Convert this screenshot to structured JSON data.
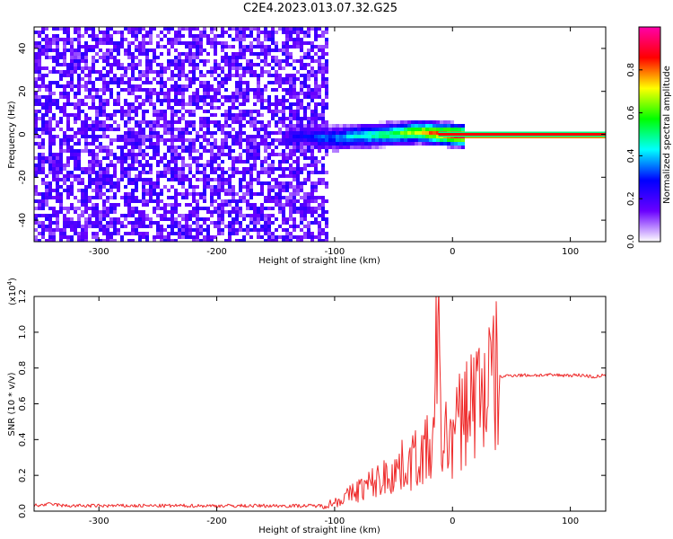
{
  "title": "C2E4.2023.013.07.32.G25",
  "colors": {
    "snr_line": "#ee2a2a",
    "spectrogram_noise": "#6a00ff",
    "spectrogram_carrier": "#ff0000"
  },
  "chart_data": [
    {
      "type": "heatmap",
      "xlabel": "Height of straight line (km)",
      "ylabel": "Frequency (Hz)",
      "xlim": [
        -355,
        130
      ],
      "ylim": [
        -50,
        50
      ],
      "xticks": [
        -300,
        -200,
        -100,
        0,
        100
      ],
      "yticks": [
        -40,
        -20,
        0,
        20,
        40
      ],
      "colorbar": {
        "label": "Normalized spectral amplitude",
        "range": [
          0,
          1
        ],
        "ticks": [
          "0.0",
          "0.2",
          "0.4",
          "0.6",
          "0.8"
        ],
        "colormap": [
          "#ffffff",
          "#6a00ff",
          "#0000ff",
          "#00ffff",
          "#00ff00",
          "#ffff00",
          "#ff0000",
          "#ff00aa"
        ]
      },
      "features": {
        "noise_floor_x_range": [
          -355,
          -108
        ],
        "noise_mean_amplitude": 0.15,
        "doppler_trace": [
          {
            "x": -140,
            "y": 0,
            "amplitude": 0.2
          },
          {
            "x": -100,
            "y": -1,
            "amplitude": 0.35
          },
          {
            "x": -80,
            "y": 0,
            "amplitude": 0.45
          },
          {
            "x": -50,
            "y": 1,
            "amplitude": 0.55
          },
          {
            "x": -30,
            "y": 2,
            "amplitude": 0.7
          },
          {
            "x": -12,
            "y": 1,
            "amplitude": 0.85
          },
          {
            "x": 10,
            "y": 0,
            "amplitude": 0.95
          },
          {
            "x": 130,
            "y": 0,
            "amplitude": 0.95
          }
        ]
      }
    },
    {
      "type": "line",
      "xlabel": "Height of straight line (km)",
      "ylabel": "SNR (10 * v/v)",
      "y_multiplier": "(x10",
      "y_multiplier_exp": "4",
      "y_multiplier_close": ")",
      "xlim": [
        -355,
        130
      ],
      "ylim": [
        0,
        1.2
      ],
      "xticks": [
        -300,
        -200,
        -100,
        0,
        100
      ],
      "yticks": [
        "0.0",
        "0.2",
        "0.4",
        "0.6",
        "0.8",
        "1.0",
        "1.2"
      ],
      "series": [
        {
          "x": [
            -355,
            -340,
            -330,
            -320,
            -300,
            -280,
            -260,
            -240,
            -220,
            -200,
            -180,
            -160,
            -140,
            -130,
            -120,
            -110,
            -100,
            -90,
            -80,
            -70,
            -60,
            -50,
            -40,
            -30,
            -20,
            -15,
            -13,
            -10,
            -5,
            0,
            5,
            10,
            20,
            30,
            40,
            50,
            60,
            70,
            80,
            90,
            100,
            110,
            120,
            130
          ],
          "y": [
            0.03,
            0.04,
            0.03,
            0.03,
            0.03,
            0.03,
            0.03,
            0.03,
            0.03,
            0.03,
            0.03,
            0.03,
            0.03,
            0.03,
            0.03,
            0.03,
            0.05,
            0.08,
            0.12,
            0.15,
            0.18,
            0.22,
            0.26,
            0.3,
            0.34,
            0.38,
            1.2,
            0.42,
            0.4,
            0.42,
            0.48,
            0.56,
            0.65,
            0.71,
            0.75,
            0.76,
            0.76,
            0.76,
            0.76,
            0.76,
            0.76,
            0.76,
            0.75,
            0.76
          ]
        }
      ]
    }
  ]
}
